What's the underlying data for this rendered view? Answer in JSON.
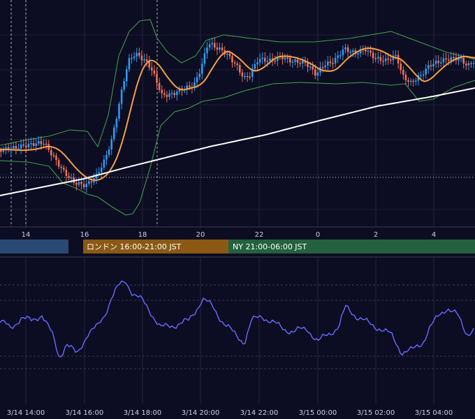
{
  "chart_data": {
    "type": "candlestick",
    "main_panel": {
      "x_tick_labels": [
        "14",
        "16",
        "18",
        "20",
        "22",
        "0",
        "2",
        "4"
      ],
      "indicators": [
        "bollinger-bands",
        "moving-average-orange",
        "moving-average-white"
      ],
      "colors": {
        "up": "#2e9bf0",
        "down": "#f0705a",
        "ma_short": "#f5a042",
        "ma_long": "#ffffff",
        "bands": "#3e9a4a"
      }
    },
    "sessions": [
      {
        "label": "",
        "color": "#2b4a73"
      },
      {
        "label": "ロンドン 16:00-21:00 JST",
        "color": "#8a5a14"
      },
      {
        "label": "NY 21:00-06:00 JST",
        "color": "#23613f"
      }
    ],
    "oscillator_panel": {
      "color": "#6a6aff",
      "x_tick_labels": [
        "3/14 14:00",
        "3/14 16:00",
        "3/14 18:00",
        "3/14 20:00",
        "3/14 22:00",
        "3/15 00:00",
        "3/15 02:00",
        "3/15 04:00"
      ]
    }
  }
}
